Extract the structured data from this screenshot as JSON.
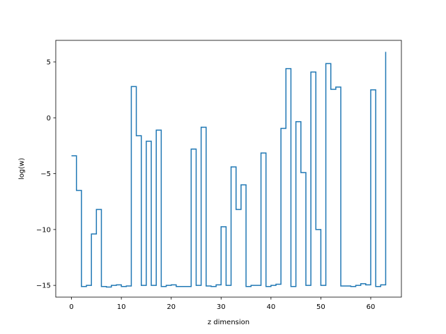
{
  "chart_data": {
    "type": "line",
    "style": "step-post",
    "title": "",
    "xlabel": "z dimension",
    "ylabel": "log(w)",
    "xlim": [
      -3.15,
      66.15
    ],
    "ylim": [
      -16.05,
      6.93
    ],
    "xticks": [
      0,
      10,
      20,
      30,
      40,
      50,
      60
    ],
    "yticks": [
      -15,
      -10,
      -5,
      0,
      5
    ],
    "grid": false,
    "legend": "none",
    "line_color": "#1f77b4",
    "series": [
      {
        "x": [
          0,
          1,
          2,
          3,
          4,
          5,
          6,
          7,
          8,
          9,
          10,
          11,
          12,
          13,
          14,
          15,
          16,
          17,
          18,
          19,
          20,
          21,
          22,
          23,
          24,
          25,
          26,
          27,
          28,
          29,
          30,
          31,
          32,
          33,
          34,
          35,
          36,
          37,
          38,
          39,
          40,
          41,
          42,
          43,
          44,
          45,
          46,
          47,
          48,
          49,
          50,
          51,
          52,
          53,
          54,
          55,
          56,
          57,
          58,
          59,
          60,
          61,
          62,
          63
        ],
        "values": [
          -3.4,
          -6.5,
          -15.1,
          -15.0,
          -10.4,
          -8.2,
          -15.1,
          -15.15,
          -15.0,
          -14.95,
          -15.1,
          -15.05,
          2.8,
          -1.6,
          -15.0,
          -2.1,
          -15.0,
          -1.1,
          -15.1,
          -15.0,
          -14.95,
          -15.1,
          -15.1,
          -15.1,
          -2.8,
          -15.0,
          -0.85,
          -15.05,
          -15.1,
          -14.95,
          -9.75,
          -15.0,
          -4.4,
          -8.2,
          -6.0,
          -15.1,
          -15.0,
          -15.0,
          -3.15,
          -15.1,
          -15.0,
          -14.9,
          -0.95,
          4.4,
          -15.1,
          -0.35,
          -4.9,
          -15.0,
          4.1,
          -10.0,
          -15.0,
          4.85,
          2.55,
          2.75,
          -15.05,
          -15.05,
          -15.1,
          -15.0,
          -14.85,
          -14.95,
          2.5,
          -15.1,
          -14.95,
          5.9
        ]
      }
    ]
  }
}
